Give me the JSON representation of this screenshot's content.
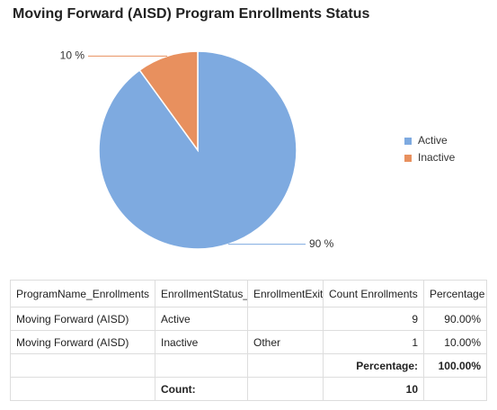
{
  "chart_data": {
    "type": "pie",
    "title": "Moving Forward (AISD) Program Enrollments Status",
    "categories": [
      "Active",
      "Inactive"
    ],
    "values": [
      90,
      10
    ],
    "value_labels": [
      "90 %",
      "10 %"
    ],
    "colors": [
      "#7eaae0",
      "#e8905e"
    ],
    "legend": "right"
  },
  "table": {
    "headers": [
      "ProgramName_Enrollments",
      "EnrollmentStatus_",
      "EnrollmentExit",
      "Count Enrollments",
      "Percentage"
    ],
    "rows": [
      [
        "Moving Forward (AISD)",
        "Active",
        null,
        9,
        "90.00%"
      ],
      [
        "Moving Forward (AISD)",
        "Inactive",
        "Other",
        1,
        "10.00%"
      ]
    ],
    "totals": {
      "percentage_label": "Percentage:",
      "percentage": "100.00%",
      "count_label": "Count:",
      "count": 10
    }
  }
}
